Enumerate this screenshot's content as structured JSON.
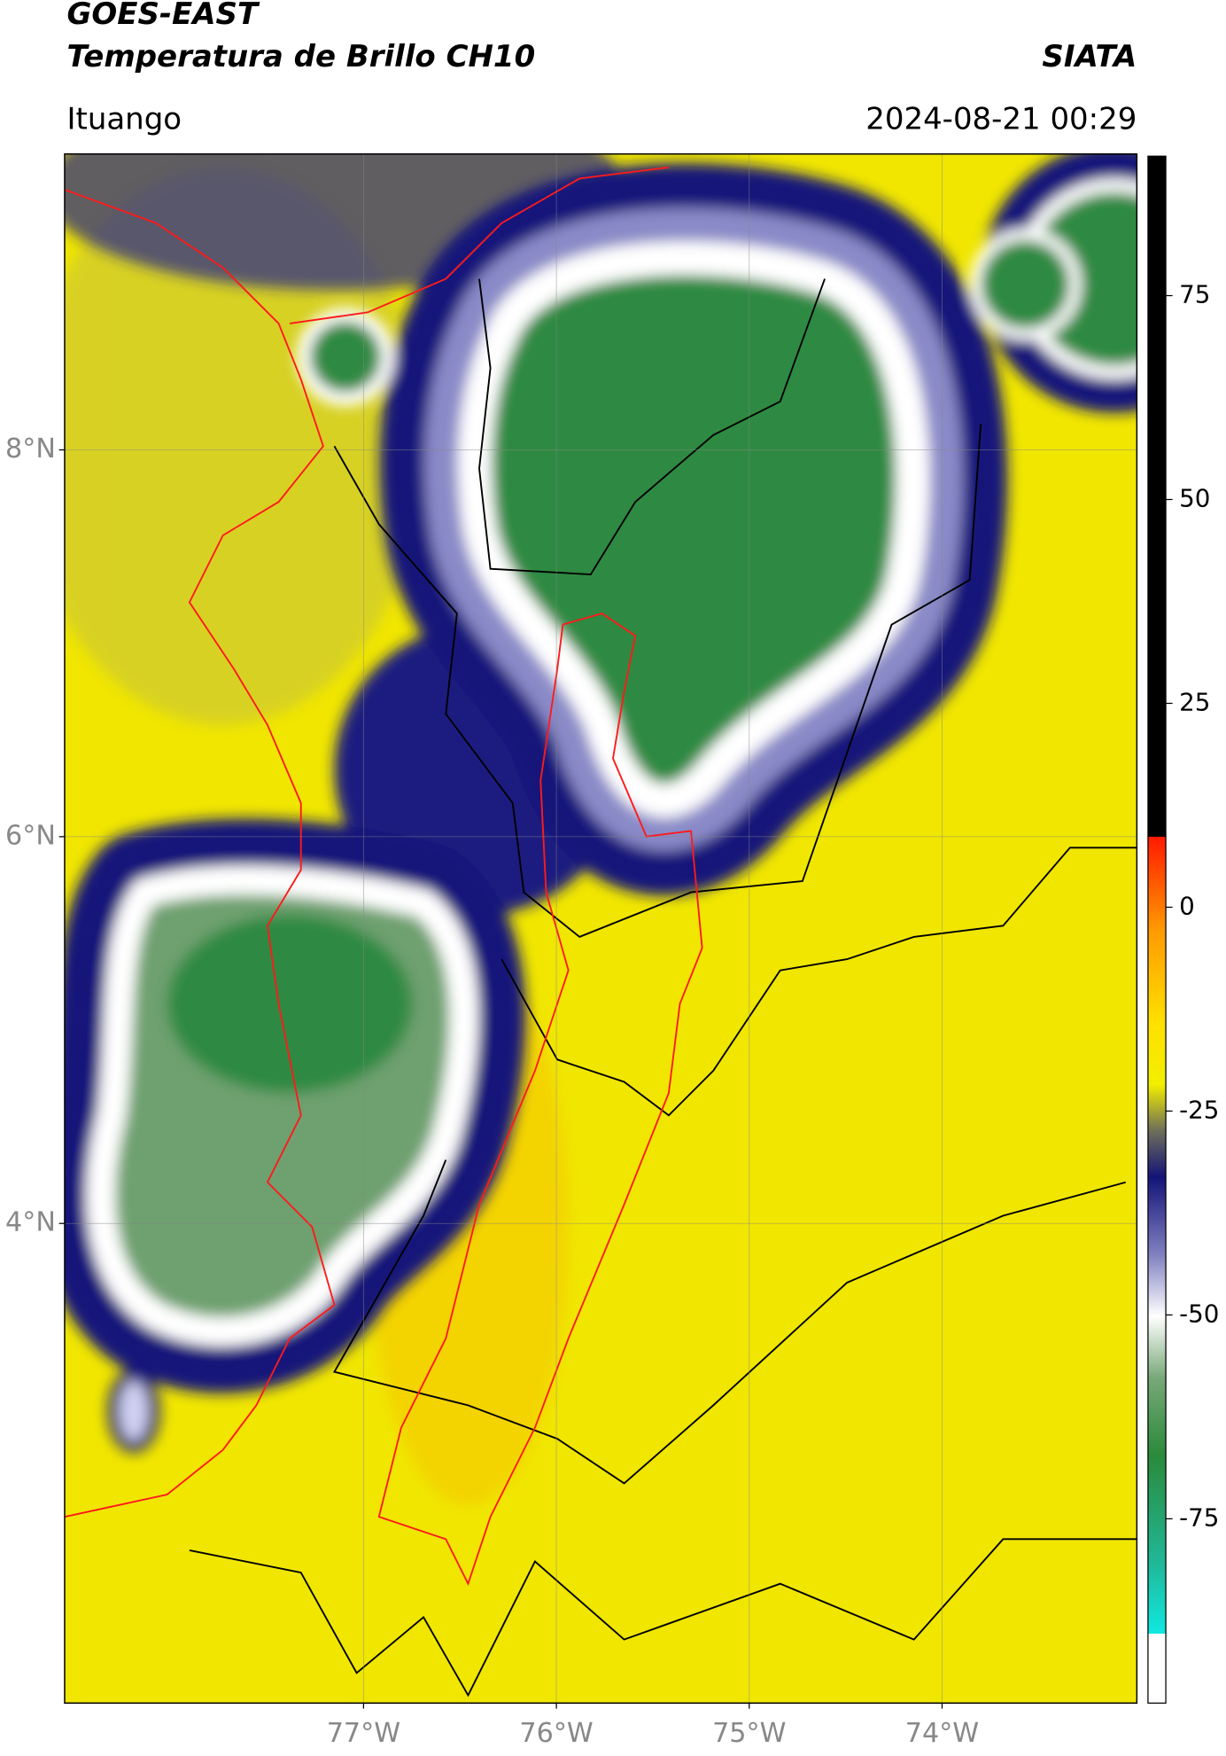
{
  "header": {
    "title": "GOES-EAST",
    "subtitle": "Temperatura de Brillo CH10",
    "source": "SIATA",
    "region": "Ituango",
    "datetime": "2024-08-21 00:29"
  },
  "map": {
    "lat_range": [
      1.52,
      9.53
    ],
    "lon_range": [
      -78.55,
      -72.99
    ],
    "lat_ticks": [
      {
        "value": 8,
        "label": "8°N"
      },
      {
        "value": 6,
        "label": "6°N"
      },
      {
        "value": 4,
        "label": "4°N"
      }
    ],
    "lon_ticks": [
      {
        "value": -77,
        "label": "77°W"
      },
      {
        "value": -76,
        "label": "76°W"
      },
      {
        "value": -75,
        "label": "75°W"
      },
      {
        "value": -74,
        "label": "74°W"
      }
    ],
    "colorbar": {
      "range": [
        -97.6,
        92.1
      ],
      "ticks": [
        75,
        50,
        25,
        0,
        -25,
        -50,
        -75
      ]
    }
  }
}
